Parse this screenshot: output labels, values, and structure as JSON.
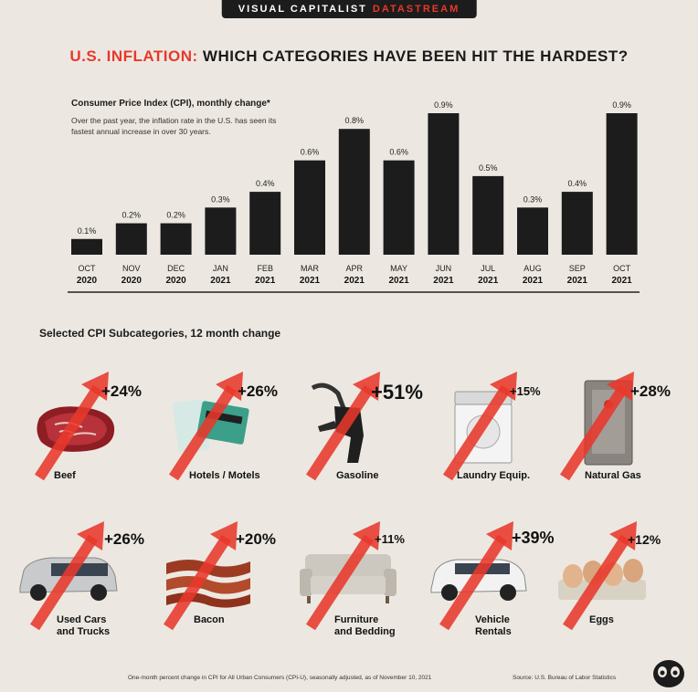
{
  "header": {
    "brand": "VISUAL CAPITALIST",
    "brand_accent": "DATASTREAM",
    "title_red": "U.S. INFLATION:",
    "title_rest": "WHICH CATEGORIES HAVE BEEN HIT THE HARDEST?"
  },
  "colors": {
    "accent": "#e8382b",
    "bar": "#1c1c1c",
    "background": "#ece8e1"
  },
  "chart_data": {
    "type": "bar",
    "title": "Consumer Price Index (CPI), monthly change*",
    "subtitle": "Over the past year, the inflation rate in the U.S. has seen its fastest annual increase in over 30 years.",
    "categories": [
      {
        "month": "OCT",
        "year": "2020"
      },
      {
        "month": "NOV",
        "year": "2020"
      },
      {
        "month": "DEC",
        "year": "2020"
      },
      {
        "month": "JAN",
        "year": "2021"
      },
      {
        "month": "FEB",
        "year": "2021"
      },
      {
        "month": "MAR",
        "year": "2021"
      },
      {
        "month": "APR",
        "year": "2021"
      },
      {
        "month": "MAY",
        "year": "2021"
      },
      {
        "month": "JUN",
        "year": "2021"
      },
      {
        "month": "JUL",
        "year": "2021"
      },
      {
        "month": "AUG",
        "year": "2021"
      },
      {
        "month": "SEP",
        "year": "2021"
      },
      {
        "month": "OCT",
        "year": "2021"
      }
    ],
    "values": [
      0.1,
      0.2,
      0.2,
      0.3,
      0.4,
      0.6,
      0.8,
      0.6,
      0.9,
      0.5,
      0.3,
      0.4,
      0.9
    ],
    "labels": [
      "0.1%",
      "0.2%",
      "0.2%",
      "0.3%",
      "0.4%",
      "0.6%",
      "0.8%",
      "0.6%",
      "0.9%",
      "0.5%",
      "0.3%",
      "0.4%",
      "0.9%"
    ],
    "ylim": [
      0,
      0.9
    ],
    "grid": false,
    "legend": "none"
  },
  "subcategories": {
    "heading": "Selected CPI Subcategories, 12 month change",
    "items": [
      {
        "label": "Beef",
        "change": "+24%",
        "icon": "beef-icon"
      },
      {
        "label": "Hotels / Motels",
        "change": "+26%",
        "icon": "hotel-keycard-icon"
      },
      {
        "label": "Gasoline",
        "change": "+51%",
        "icon": "gas-nozzle-icon"
      },
      {
        "label": "Laundry Equip.",
        "change": "+15%",
        "icon": "washing-machine-icon"
      },
      {
        "label": "Natural Gas",
        "change": "+28%",
        "icon": "gas-heater-icon"
      },
      {
        "label": "Used Cars\nand Trucks",
        "change": "+26%",
        "icon": "minivan-icon"
      },
      {
        "label": "Bacon",
        "change": "+20%",
        "icon": "bacon-icon"
      },
      {
        "label": "Furniture\nand Bedding",
        "change": "+11%",
        "icon": "sofa-icon"
      },
      {
        "label": "Vehicle\nRentals",
        "change": "+39%",
        "icon": "suv-icon"
      },
      {
        "label": "Eggs",
        "change": "+12%",
        "icon": "eggs-icon"
      }
    ]
  },
  "footer": {
    "footnote": "One-month percent change in CPI for All Urban Consumers (CPI-U), seasonally adjusted, as of November 10, 2021",
    "source": "Source: U.S. Bureau of Labor Statistics"
  }
}
